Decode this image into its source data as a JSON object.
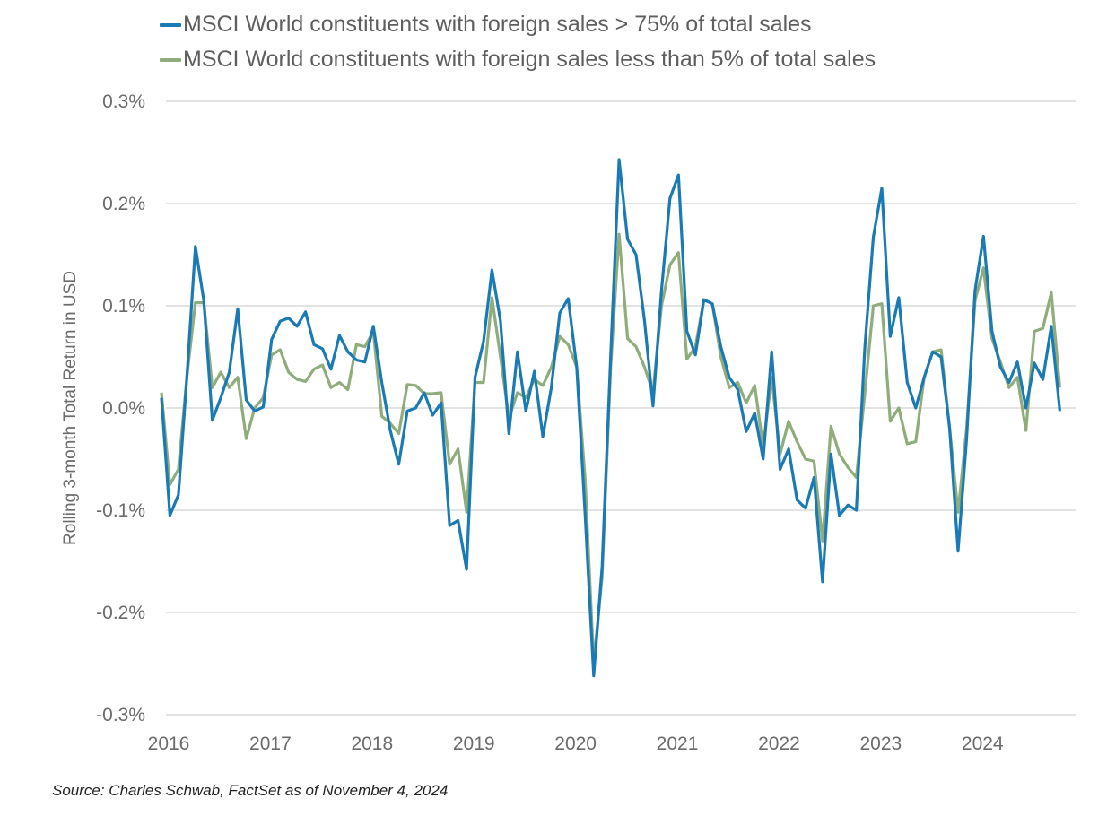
{
  "chart_data": {
    "type": "line",
    "title": "",
    "xlabel": "",
    "ylabel": "Rolling 3-month Total Return in USD",
    "ylim": [
      -0.3,
      0.3
    ],
    "yticks": [
      0.3,
      0.2,
      0.1,
      0.0,
      -0.1,
      -0.2,
      -0.3
    ],
    "ytick_labels": [
      "0.3%",
      "0.2%",
      "0.1%",
      "0.0%",
      "-0.1%",
      "-0.2%",
      "-0.3%"
    ],
    "xlim": [
      2016.0,
      2024.95
    ],
    "xticks": [
      2016,
      2017,
      2018,
      2019,
      2020,
      2021,
      2022,
      2023,
      2024
    ],
    "xtick_labels": [
      "2016",
      "2017",
      "2018",
      "2019",
      "2020",
      "2021",
      "2022",
      "2023",
      "2024"
    ],
    "grid": true,
    "legend_position": "top-left",
    "frequency": "monthly",
    "x_start": 2016.0,
    "x_step": 0.0833,
    "series": [
      {
        "name": "MSCI World constituents with foreign sales > 75% of total sales",
        "color": "#1a7ab5",
        "values": [
          0.01,
          -0.105,
          -0.085,
          0.03,
          0.158,
          0.105,
          -0.012,
          0.01,
          0.035,
          0.097,
          0.008,
          -0.003,
          0.001,
          0.067,
          0.085,
          0.088,
          0.08,
          0.094,
          0.062,
          0.058,
          0.038,
          0.071,
          0.055,
          0.047,
          0.045,
          0.08,
          0.025,
          -0.022,
          -0.055,
          -0.003,
          0.0,
          0.015,
          -0.007,
          0.005,
          -0.115,
          -0.11,
          -0.158,
          0.03,
          0.065,
          0.135,
          0.085,
          -0.025,
          0.055,
          -0.003,
          0.036,
          -0.028,
          0.02,
          0.093,
          0.107,
          0.04,
          -0.105,
          -0.262,
          -0.155,
          0.05,
          0.243,
          0.165,
          0.15,
          0.085,
          0.002,
          0.115,
          0.205,
          0.228,
          0.075,
          0.052,
          0.106,
          0.102,
          0.06,
          0.03,
          0.018,
          -0.023,
          -0.005,
          -0.05,
          0.055,
          -0.06,
          -0.04,
          -0.09,
          -0.098,
          -0.068,
          -0.17,
          -0.045,
          -0.105,
          -0.095,
          -0.1,
          0.06,
          0.167,
          0.215,
          0.07,
          0.108,
          0.025,
          0.0,
          0.03,
          0.055,
          0.05,
          -0.02,
          -0.14,
          -0.03,
          0.115,
          0.168,
          0.075,
          0.04,
          0.025,
          0.045,
          0.0,
          0.044,
          0.028,
          0.08,
          -0.003
        ]
      },
      {
        "name": "MSCI World constituents with foreign sales less than 5% of total sales",
        "color": "#8fac7b",
        "values": [
          0.015,
          -0.075,
          -0.06,
          0.03,
          0.103,
          0.103,
          0.02,
          0.035,
          0.02,
          0.03,
          -0.03,
          0.0,
          0.01,
          0.052,
          0.057,
          0.035,
          0.028,
          0.026,
          0.038,
          0.042,
          0.02,
          0.025,
          0.018,
          0.062,
          0.06,
          0.075,
          -0.008,
          -0.015,
          -0.025,
          0.023,
          0.022,
          0.014,
          0.014,
          0.015,
          -0.055,
          -0.04,
          -0.102,
          0.025,
          0.025,
          0.108,
          0.05,
          -0.01,
          0.015,
          0.01,
          0.028,
          0.022,
          0.04,
          0.07,
          0.062,
          0.04,
          -0.07,
          -0.25,
          -0.165,
          0.04,
          0.17,
          0.068,
          0.06,
          0.04,
          0.015,
          0.1,
          0.14,
          0.152,
          0.048,
          0.06,
          0.106,
          0.102,
          0.05,
          0.02,
          0.025,
          0.005,
          0.022,
          -0.038,
          0.03,
          -0.045,
          -0.013,
          -0.033,
          -0.05,
          -0.052,
          -0.13,
          -0.018,
          -0.045,
          -0.058,
          -0.068,
          0.015,
          0.1,
          0.102,
          -0.013,
          0.0,
          -0.035,
          -0.033,
          0.03,
          0.055,
          0.057,
          -0.02,
          -0.102,
          -0.02,
          0.105,
          0.137,
          0.068,
          0.045,
          0.02,
          0.03,
          -0.022,
          0.075,
          0.078,
          0.113,
          0.02
        ]
      }
    ]
  },
  "legend": {
    "items": [
      {
        "label": "MSCI World constituents with foreign sales > 75% of total sales",
        "color": "#1a7ab5"
      },
      {
        "label": "MSCI World constituents with foreign sales less than 5% of total sales",
        "color": "#8fac7b"
      }
    ]
  },
  "source_note": "Source: Charles Schwab, FactSet as of November 4, 2024",
  "colors": {
    "grid": "#e3e3e3",
    "tick_text": "#6b6b6b"
  }
}
